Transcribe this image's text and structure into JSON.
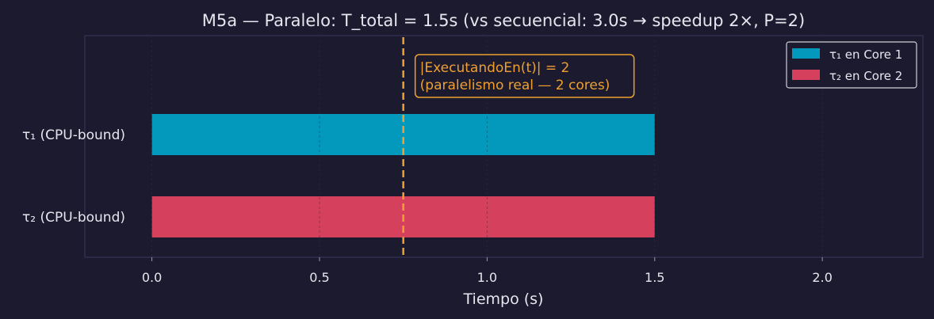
{
  "chart_data": {
    "type": "bar",
    "orientation": "horizontal",
    "title": "M5a — Paralelo: T_total = 1.5s  (vs secuencial: 3.0s → speedup 2×, P=2)",
    "xlabel": "Tiempo (s)",
    "ylabel": "",
    "xlim": [
      -0.2,
      2.3
    ],
    "xticks": [
      0.0,
      0.5,
      1.0,
      1.5,
      2.0
    ],
    "xtick_labels": [
      "0.0",
      "0.5",
      "1.0",
      "1.5",
      "2.0"
    ],
    "grid": true,
    "legend_position": "top-right",
    "categories": [
      "τ₁ (CPU-bound)",
      "τ₂ (CPU-bound)"
    ],
    "series": [
      {
        "name": "τ₁ en Core 1",
        "category": "τ₁ (CPU-bound)",
        "start": 0.0,
        "end": 1.5,
        "color": "#0399bd"
      },
      {
        "name": "τ₂ en Core 2",
        "category": "τ₂ (CPU-bound)",
        "start": 0.0,
        "end": 1.5,
        "color": "#d5405c"
      }
    ],
    "marker": {
      "x": 0.75,
      "color": "#f0a030",
      "style": "dashed"
    },
    "annotation": {
      "lines": [
        "|ExecutandoEn(t)| = 2",
        "(paralelismo real — 2 cores)"
      ],
      "color": "#f0a030"
    }
  },
  "colors": {
    "background": "#1b1a2e",
    "axes_border": "#2f2f4e",
    "text": "#e6e6ee",
    "grid": "#2a2a40"
  }
}
